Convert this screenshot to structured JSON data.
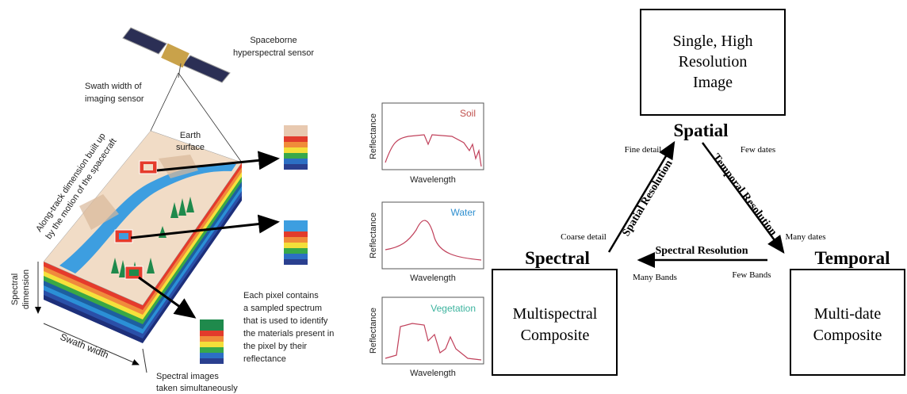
{
  "illustration": {
    "sensor_label": [
      "Spaceborne",
      "hyperspectral sensor"
    ],
    "swath_label": [
      "Swath width of",
      "imaging sensor"
    ],
    "earth_label": [
      "Earth",
      "surface"
    ],
    "along_track_label": [
      "Along-track dimension built up",
      "by the motion of the spacecraft"
    ],
    "spectral_dimension_label": [
      "Spectral",
      "dimension"
    ],
    "swath_width_label": "Swath width",
    "pixel_label": [
      "Each pixel contains",
      "a sampled spectrum",
      "that is used to identify",
      "the materials present in",
      "the pixel by their",
      "reflectance"
    ],
    "images_label": [
      "Spectral images",
      "taken simultaneously"
    ]
  },
  "spectra": [
    {
      "title": "Soil",
      "y_label": "Reflectance",
      "x_label": "Wavelength"
    },
    {
      "title": "Water",
      "y_label": "Reflectance",
      "x_label": "Wavelength"
    },
    {
      "title": "Vegetation",
      "y_label": "Reflectance",
      "x_label": "Wavelength"
    }
  ],
  "triangle": {
    "top": {
      "name": "Spatial",
      "box": [
        "Single, High",
        "Resolution",
        "Image"
      ]
    },
    "left": {
      "name": "Spectral",
      "box": [
        "Multispectral",
        "Composite"
      ]
    },
    "right": {
      "name": "Temporal",
      "box": [
        "Multi-date",
        "Composite"
      ]
    },
    "edges": {
      "spatial": "Spatial Resolution",
      "temporal": "Temporal Resolution",
      "spectral": "Spectral Resolution"
    },
    "annotations": {
      "fine": "Fine detail",
      "coarse": "Coarse detail",
      "few_dates": "Few dates",
      "many_dates": "Many dates",
      "many_bands": "Many Bands",
      "few_bands": "Few Bands"
    }
  }
}
